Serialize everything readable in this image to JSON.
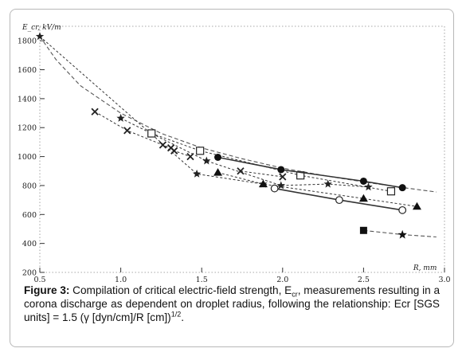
{
  "caption": {
    "label": "Figure 3:",
    "text_a": " Compilation of critical electric-field strength, E",
    "sub": "cr",
    "text_b": ", measurements resulting in a corona discharge as dependent on droplet radius, following the relationship: Ecr [SGS units] = 1.5 (γ [dyn/cm]/R [cm])",
    "sup": "1/2",
    "text_c": "."
  },
  "chart_data": {
    "type": "line",
    "ylabel": "E_cr, kV/m",
    "xlabel": "R, mm",
    "xlim": [
      0.5,
      3.0
    ],
    "ylim": [
      200,
      1900
    ],
    "x_ticks": [
      "0.5",
      "1.0",
      "1.5",
      "2.0",
      "2.5",
      "3.0"
    ],
    "y_ticks": [
      "200",
      "400",
      "600",
      "800",
      "1000",
      "1200",
      "1400",
      "1600",
      "1800"
    ],
    "grid": false,
    "series": [
      {
        "marker": "star",
        "style": "dashed",
        "x": [
          0.5,
          1.47,
          1.88
        ],
        "y": [
          1830,
          880,
          810
        ]
      },
      {
        "marker": "cross",
        "style": "dashed",
        "x": [
          0.84,
          1.04,
          1.26,
          1.31,
          1.33,
          1.43
        ],
        "y": [
          1310,
          1180,
          1080,
          1060,
          1040,
          1000
        ]
      },
      {
        "marker": "star",
        "style": "dashed",
        "x": [
          1.0,
          1.53,
          1.99,
          2.28,
          2.53
        ],
        "y": [
          1265,
          970,
          800,
          810,
          790
        ]
      },
      {
        "marker": "open-square",
        "style": "dashed",
        "x": [
          1.19,
          1.49,
          2.11,
          2.67
        ],
        "y": [
          1160,
          1040,
          870,
          760
        ]
      },
      {
        "marker": "filled-circle",
        "style": "solid",
        "x": [
          1.6,
          1.99,
          2.5,
          2.74
        ],
        "y": [
          995,
          910,
          830,
          785
        ]
      },
      {
        "marker": "cross",
        "style": "dashed",
        "x": [
          1.74,
          2.0
        ],
        "y": [
          900,
          860
        ]
      },
      {
        "marker": "filled-triangle",
        "style": "dashed",
        "x": [
          1.6,
          1.88,
          2.5,
          2.83
        ],
        "y": [
          890,
          810,
          710,
          655
        ]
      },
      {
        "marker": "open-circle",
        "style": "solid",
        "x": [
          1.95,
          2.35,
          2.74
        ],
        "y": [
          780,
          700,
          630
        ]
      },
      {
        "marker": "filled-square",
        "style": "dashed",
        "x": [
          2.5
        ],
        "y": [
          490
        ]
      },
      {
        "marker": "filled-star",
        "style": "dashed",
        "x": [
          2.74
        ],
        "y": [
          460
        ]
      }
    ],
    "fit_curves": [
      {
        "style": "dashed",
        "x": [
          0.5,
          0.6,
          0.75,
          1.0,
          1.25,
          1.5,
          1.75,
          2.0,
          2.25,
          2.5,
          2.75,
          2.95
        ],
        "y": [
          1830,
          1670,
          1490,
          1300,
          1160,
          1060,
          985,
          920,
          870,
          825,
          785,
          755
        ]
      },
      {
        "style": "dashed",
        "x": [
          2.5,
          2.75,
          2.95
        ],
        "y": [
          490,
          460,
          445
        ]
      }
    ]
  }
}
